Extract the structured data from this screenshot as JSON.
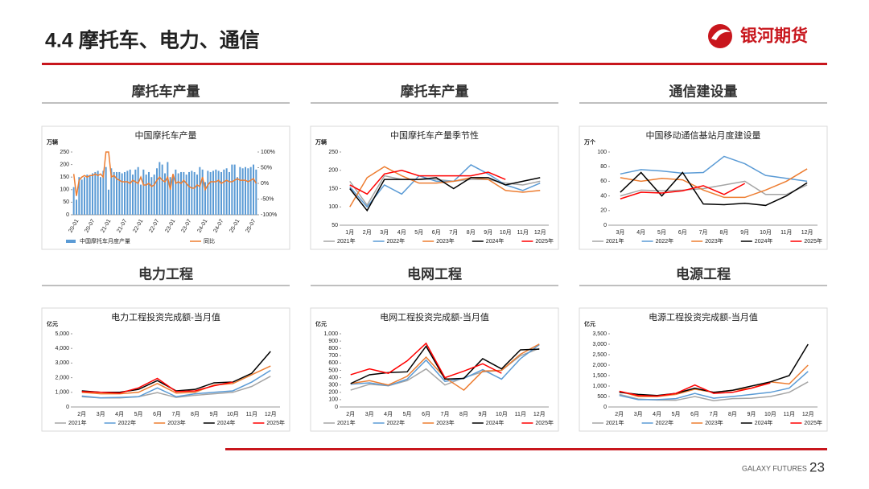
{
  "header": {
    "title": "4.4 摩托车、电力、通信",
    "logo": "银河期货"
  },
  "footer": {
    "brand": "GALAXY FUTURES",
    "page": "23"
  },
  "chart_data": [
    {
      "type": "bar",
      "heading": "摩托车产量",
      "title": "中国摩托车产量",
      "y_unit": "万辆",
      "categories": [
        "20-01",
        null,
        null,
        null,
        null,
        null,
        "20-07",
        null,
        null,
        null,
        null,
        null,
        "21-01",
        null,
        null,
        null,
        null,
        null,
        "21-07",
        null,
        null,
        null,
        null,
        null,
        "22-01",
        null,
        null,
        null,
        null,
        null,
        "22-07",
        null,
        null,
        null,
        null,
        null,
        "23-01",
        null,
        null,
        null,
        null,
        null,
        "23-07",
        null,
        null,
        null,
        null,
        null,
        "24-01",
        null,
        null,
        null,
        null,
        null,
        "24-07",
        null,
        null,
        null,
        null,
        null,
        "25-01",
        null,
        null,
        null,
        null,
        null,
        "25-07",
        null,
        null
      ],
      "ylim": [
        0,
        250
      ],
      "yticks": [
        0,
        50,
        100,
        150,
        200,
        250
      ],
      "y2lim": [
        -100,
        100
      ],
      "y2ticks": [
        {
          "value": -100,
          "label": "-100%"
        },
        {
          "value": -50,
          "label": "-50%"
        },
        {
          "value": 0,
          "label": "0%"
        },
        {
          "value": 50,
          "label": "50%"
        },
        {
          "value": 100,
          "label": "100%"
        }
      ],
      "series": [
        {
          "name": "中国摩托车月度产量",
          "type": "bar",
          "color": "#5b9bd5",
          "values": [
            110,
            60,
            150,
            140,
            150,
            160,
            155,
            165,
            170,
            175,
            150,
            175,
            190,
            100,
            185,
            170,
            170,
            170,
            165,
            170,
            175,
            180,
            160,
            180,
            190,
            120,
            180,
            160,
            170,
            150,
            160,
            185,
            210,
            200,
            165,
            210,
            150,
            160,
            180,
            165,
            170,
            170,
            160,
            170,
            175,
            170,
            160,
            190,
            180,
            130,
            175,
            170,
            175,
            180,
            175,
            170,
            180,
            185,
            170,
            200,
            200,
            150,
            190,
            185,
            190,
            185,
            190,
            200,
            180
          ]
        },
        {
          "name": "同比",
          "type": "line",
          "axis": "y2",
          "color": "#ed7d31",
          "values": [
            30,
            -40,
            10,
            20,
            25,
            20,
            25,
            25,
            30,
            25,
            30,
            20,
            100,
            100,
            20,
            25,
            15,
            10,
            5,
            5,
            5,
            0,
            10,
            5,
            0,
            20,
            -5,
            -5,
            0,
            -10,
            -5,
            10,
            20,
            10,
            5,
            20,
            -20,
            30,
            0,
            5,
            0,
            10,
            0,
            -10,
            -15,
            -15,
            -5,
            -10,
            20,
            -20,
            -5,
            5,
            5,
            5,
            10,
            0,
            5,
            10,
            5,
            5,
            10,
            15,
            10,
            10,
            10,
            5,
            10,
            15,
            0
          ]
        }
      ]
    },
    {
      "type": "line",
      "heading": "摩托车产量",
      "title": "中国摩托车产量季节性",
      "y_unit": "万辆",
      "categories": [
        "1月",
        "2月",
        "3月",
        "4月",
        "5月",
        "6月",
        "7月",
        "8月",
        "9月",
        "10月",
        "11月",
        "12月"
      ],
      "ylim": [
        50,
        250
      ],
      "yticks": [
        50,
        100,
        150,
        200,
        250
      ],
      "series": [
        {
          "name": "2021年",
          "color": "#a5a5a5",
          "values": [
            170,
            105,
            185,
            175,
            175,
            175,
            170,
            175,
            175,
            165,
            160,
            170
          ]
        },
        {
          "name": "2022年",
          "color": "#5b9bd5",
          "values": [
            155,
            100,
            160,
            135,
            185,
            170,
            170,
            215,
            190,
            160,
            145,
            165
          ]
        },
        {
          "name": "2023年",
          "color": "#ed7d31",
          "values": [
            100,
            180,
            210,
            185,
            165,
            165,
            170,
            180,
            175,
            145,
            140,
            145
          ]
        },
        {
          "name": "2024年",
          "color": "#000000",
          "values": [
            150,
            90,
            175,
            175,
            175,
            180,
            150,
            180,
            180,
            160,
            170,
            180
          ]
        },
        {
          "name": "2025年",
          "color": "#ff0000",
          "values": [
            160,
            135,
            190,
            200,
            185,
            185,
            185,
            185,
            195,
            175,
            null,
            null
          ]
        }
      ]
    },
    {
      "type": "line",
      "heading": "通信建设量",
      "title": "中国移动通信基站月度建设量",
      "y_unit": "万个",
      "categories": [
        "3月",
        "4月",
        "5月",
        "6月",
        "7月",
        "8月",
        "9月",
        "10月",
        "11月",
        "12月"
      ],
      "ylim": [
        0,
        100
      ],
      "yticks": [
        0,
        20,
        40,
        60,
        80,
        100
      ],
      "series": [
        {
          "name": "2021年",
          "color": "#a5a5a5",
          "values": [
            40,
            48,
            47,
            48,
            50,
            55,
            60,
            42,
            42,
            55
          ]
        },
        {
          "name": "2022年",
          "color": "#5b9bd5",
          "values": [
            70,
            76,
            74,
            71,
            72,
            94,
            84,
            68,
            64,
            60
          ]
        },
        {
          "name": "2023年",
          "color": "#ed7d31",
          "values": [
            65,
            60,
            64,
            62,
            48,
            38,
            38,
            48,
            60,
            77
          ]
        },
        {
          "name": "2024年",
          "color": "#000000",
          "values": [
            45,
            72,
            40,
            72,
            29,
            28,
            30,
            27,
            40,
            58
          ]
        },
        {
          "name": "2025年",
          "color": "#ff0000",
          "values": [
            36,
            45,
            44,
            47,
            54,
            42,
            57,
            null,
            null,
            null
          ]
        }
      ]
    },
    {
      "type": "line",
      "heading": "电力工程",
      "title": "电力工程投资完成额-当月值",
      "y_unit": "亿元",
      "categories": [
        "2月",
        "3月",
        "4月",
        "5月",
        "6月",
        "7月",
        "8月",
        "9月",
        "10月",
        "11月",
        "12月"
      ],
      "ylim": [
        0,
        5000
      ],
      "yticks": [
        0,
        {
          "value": 1000,
          "label": "1,000"
        },
        {
          "value": 2000,
          "label": "2,000"
        },
        {
          "value": 3000,
          "label": "3,000"
        },
        {
          "value": 4000,
          "label": "4,000"
        },
        {
          "value": 5000,
          "label": "5,000"
        }
      ],
      "series": [
        {
          "name": "2021年",
          "color": "#a5a5a5",
          "values": [
            700,
            620,
            620,
            700,
            980,
            650,
            800,
            900,
            1000,
            1400,
            2100
          ]
        },
        {
          "name": "2022年",
          "color": "#5b9bd5",
          "values": [
            750,
            620,
            650,
            700,
            1300,
            700,
            900,
            1000,
            1100,
            1700,
            2500
          ]
        },
        {
          "name": "2023年",
          "color": "#ed7d31",
          "values": [
            1000,
            900,
            900,
            1000,
            1600,
            950,
            1000,
            1500,
            1600,
            2200,
            2800
          ]
        },
        {
          "name": "2024年",
          "color": "#000000",
          "values": [
            1100,
            1000,
            1000,
            1200,
            1800,
            1100,
            1200,
            1650,
            1700,
            2300,
            3800
          ]
        },
        {
          "name": "2025年",
          "color": "#ff0000",
          "values": [
            1050,
            1000,
            950,
            1300,
            1950,
            1050,
            1100,
            1450,
            1700,
            null,
            null
          ]
        }
      ]
    },
    {
      "type": "line",
      "heading": "电网工程",
      "title": "电网工程投资完成额-当月值",
      "y_unit": "亿元",
      "categories": [
        "2月",
        "3月",
        "4月",
        "5月",
        "6月",
        "7月",
        "8月",
        "9月",
        "10月",
        "11月",
        "12月"
      ],
      "ylim": [
        0,
        1000
      ],
      "yticks": [
        0,
        100,
        200,
        300,
        400,
        500,
        600,
        700,
        800,
        900,
        {
          "value": 1000,
          "label": "1,000"
        }
      ],
      "series": [
        {
          "name": "2021年",
          "color": "#a5a5a5",
          "values": [
            230,
            310,
            290,
            360,
            520,
            300,
            400,
            480,
            500,
            700,
            800
          ]
        },
        {
          "name": "2022年",
          "color": "#5b9bd5",
          "values": [
            310,
            330,
            290,
            380,
            640,
            350,
            390,
            510,
            380,
            660,
            850
          ]
        },
        {
          "name": "2023年",
          "color": "#ed7d31",
          "values": [
            320,
            360,
            300,
            420,
            680,
            400,
            230,
            490,
            500,
            720,
            860
          ]
        },
        {
          "name": "2024年",
          "color": "#000000",
          "values": [
            320,
            440,
            470,
            480,
            830,
            380,
            390,
            660,
            520,
            780,
            790
          ]
        },
        {
          "name": "2025年",
          "color": "#ff0000",
          "values": [
            440,
            520,
            460,
            630,
            870,
            400,
            490,
            590,
            460,
            null,
            null
          ]
        }
      ]
    },
    {
      "type": "line",
      "heading": "电源工程",
      "title": "电源工程投资完成额-当月值",
      "y_unit": "亿元",
      "categories": [
        "2月",
        "3月",
        "4月",
        "5月",
        "6月",
        "7月",
        "8月",
        "9月",
        "10月",
        "11月",
        "12月"
      ],
      "ylim": [
        0,
        3500
      ],
      "yticks": [
        0,
        500,
        {
          "value": 1000,
          "label": "1,000"
        },
        {
          "value": 1500,
          "label": "1,500"
        },
        {
          "value": 2000,
          "label": "2,000"
        },
        {
          "value": 2500,
          "label": "2,500"
        },
        {
          "value": 3000,
          "label": "3,000"
        },
        {
          "value": 3500,
          "label": "3,500"
        }
      ],
      "series": [
        {
          "name": "2021年",
          "color": "#a5a5a5",
          "values": [
            600,
            380,
            330,
            320,
            500,
            300,
            400,
            420,
            500,
            700,
            1200
          ]
        },
        {
          "name": "2022年",
          "color": "#5b9bd5",
          "values": [
            550,
            350,
            350,
            400,
            650,
            420,
            500,
            600,
            700,
            900,
            1700
          ]
        },
        {
          "name": "2023年",
          "color": "#ed7d31",
          "values": [
            750,
            500,
            500,
            600,
            850,
            700,
            800,
            900,
            1200,
            1100,
            2000
          ]
        },
        {
          "name": "2024年",
          "color": "#000000",
          "values": [
            700,
            600,
            550,
            650,
            900,
            700,
            800,
            1000,
            1200,
            1500,
            3000
          ]
        },
        {
          "name": "2025年",
          "color": "#ff0000",
          "values": [
            750,
            550,
            520,
            650,
            1050,
            650,
            700,
            900,
            1150,
            null,
            null
          ]
        }
      ]
    }
  ]
}
